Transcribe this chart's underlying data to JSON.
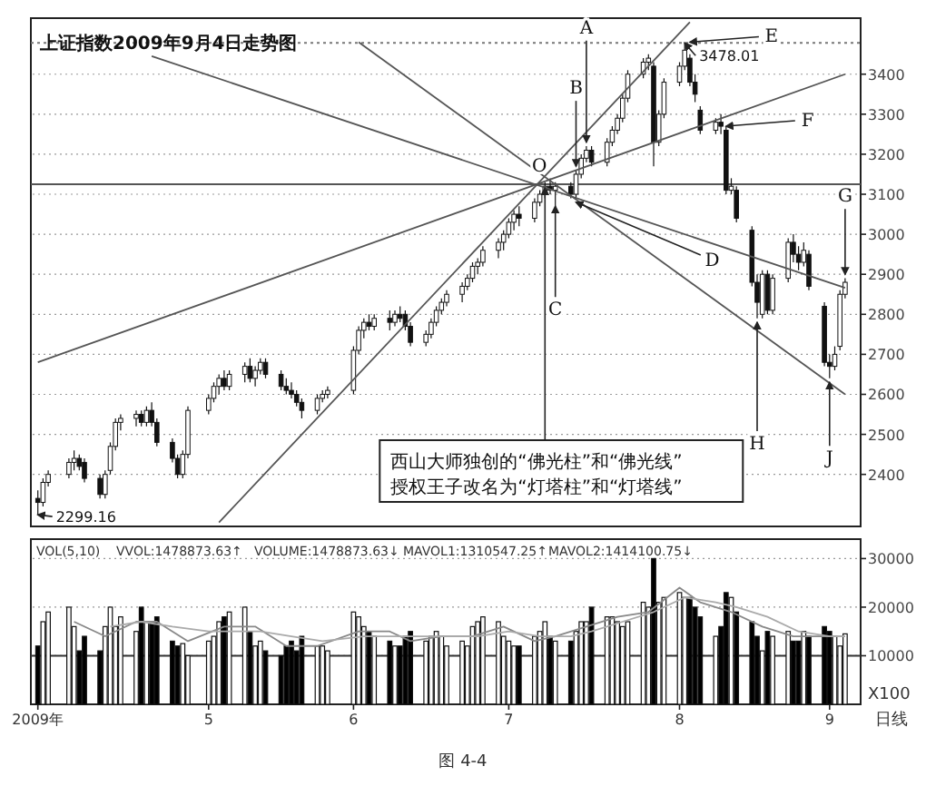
{
  "chart_data": [
    {
      "type": "candlestick",
      "title": "上证指数2009年9月4日走势图",
      "x": [
        "2009-04-01",
        "2009-04-02",
        "2009-04-03",
        "2009-04-07",
        "2009-04-08",
        "2009-04-09",
        "2009-04-10",
        "2009-04-13",
        "2009-04-14",
        "2009-04-15",
        "2009-04-16",
        "2009-04-17",
        "2009-04-20",
        "2009-04-21",
        "2009-04-22",
        "2009-04-23",
        "2009-04-24",
        "2009-04-27",
        "2009-04-28",
        "2009-04-29",
        "2009-04-30",
        "2009-05-04",
        "2009-05-05",
        "2009-05-06",
        "2009-05-07",
        "2009-05-08",
        "2009-05-11",
        "2009-05-12",
        "2009-05-13",
        "2009-05-14",
        "2009-05-15",
        "2009-05-18",
        "2009-05-19",
        "2009-05-20",
        "2009-05-21",
        "2009-05-22",
        "2009-05-25",
        "2009-05-26",
        "2009-05-27",
        "2009-06-01",
        "2009-06-02",
        "2009-06-03",
        "2009-06-04",
        "2009-06-05",
        "2009-06-08",
        "2009-06-09",
        "2009-06-10",
        "2009-06-11",
        "2009-06-12",
        "2009-06-15",
        "2009-06-16",
        "2009-06-17",
        "2009-06-18",
        "2009-06-19",
        "2009-06-22",
        "2009-06-23",
        "2009-06-24",
        "2009-06-25",
        "2009-06-26",
        "2009-06-29",
        "2009-06-30",
        "2009-07-01",
        "2009-07-02",
        "2009-07-03",
        "2009-07-06",
        "2009-07-07",
        "2009-07-08",
        "2009-07-09",
        "2009-07-10",
        "2009-07-13",
        "2009-07-14",
        "2009-07-15",
        "2009-07-16",
        "2009-07-17",
        "2009-07-20",
        "2009-07-21",
        "2009-07-22",
        "2009-07-23",
        "2009-07-24",
        "2009-07-27",
        "2009-07-28",
        "2009-07-29",
        "2009-07-30",
        "2009-07-31",
        "2009-08-03",
        "2009-08-04",
        "2009-08-05",
        "2009-08-06",
        "2009-08-07",
        "2009-08-10",
        "2009-08-11",
        "2009-08-12",
        "2009-08-13",
        "2009-08-14",
        "2009-08-17",
        "2009-08-18",
        "2009-08-19",
        "2009-08-20",
        "2009-08-21",
        "2009-08-24",
        "2009-08-25",
        "2009-08-26",
        "2009-08-27",
        "2009-08-28",
        "2009-08-31",
        "2009-09-01",
        "2009-09-02",
        "2009-09-03",
        "2009-09-04"
      ],
      "ohlc": [
        [
          2340,
          2360,
          2299.16,
          2330
        ],
        [
          2330,
          2390,
          2320,
          2380
        ],
        [
          2380,
          2410,
          2370,
          2400
        ],
        [
          2400,
          2440,
          2390,
          2430
        ],
        [
          2430,
          2460,
          2410,
          2440
        ],
        [
          2440,
          2450,
          2410,
          2420
        ],
        [
          2430,
          2440,
          2380,
          2390
        ],
        [
          2390,
          2400,
          2340,
          2350
        ],
        [
          2350,
          2410,
          2340,
          2400
        ],
        [
          2410,
          2480,
          2400,
          2470
        ],
        [
          2470,
          2540,
          2460,
          2530
        ],
        [
          2530,
          2550,
          2510,
          2540
        ],
        [
          2540,
          2560,
          2520,
          2550
        ],
        [
          2550,
          2560,
          2520,
          2530
        ],
        [
          2530,
          2570,
          2520,
          2560
        ],
        [
          2560,
          2580,
          2520,
          2530
        ],
        [
          2530,
          2540,
          2470,
          2480
        ],
        [
          2480,
          2490,
          2430,
          2440
        ],
        [
          2440,
          2450,
          2390,
          2400
        ],
        [
          2400,
          2460,
          2390,
          2450
        ],
        [
          2450,
          2570,
          2440,
          2560
        ],
        [
          2560,
          2600,
          2550,
          2590
        ],
        [
          2590,
          2630,
          2580,
          2620
        ],
        [
          2620,
          2650,
          2600,
          2640
        ],
        [
          2640,
          2660,
          2610,
          2620
        ],
        [
          2620,
          2660,
          2610,
          2650
        ],
        [
          2650,
          2680,
          2630,
          2670
        ],
        [
          2670,
          2690,
          2630,
          2640
        ],
        [
          2640,
          2670,
          2620,
          2660
        ],
        [
          2660,
          2690,
          2650,
          2680
        ],
        [
          2680,
          2690,
          2640,
          2650
        ],
        [
          2650,
          2660,
          2610,
          2620
        ],
        [
          2620,
          2640,
          2600,
          2610
        ],
        [
          2610,
          2630,
          2590,
          2600
        ],
        [
          2600,
          2610,
          2570,
          2580
        ],
        [
          2580,
          2590,
          2540,
          2560
        ],
        [
          2560,
          2600,
          2550,
          2590
        ],
        [
          2590,
          2610,
          2580,
          2600
        ],
        [
          2600,
          2620,
          2590,
          2610
        ],
        [
          2610,
          2720,
          2600,
          2710
        ],
        [
          2710,
          2770,
          2700,
          2760
        ],
        [
          2760,
          2790,
          2740,
          2780
        ],
        [
          2780,
          2800,
          2760,
          2770
        ],
        [
          2770,
          2800,
          2760,
          2790
        ],
        [
          2790,
          2810,
          2760,
          2780
        ],
        [
          2780,
          2810,
          2770,
          2800
        ],
        [
          2800,
          2820,
          2780,
          2790
        ],
        [
          2800,
          2810,
          2760,
          2770
        ],
        [
          2770,
          2780,
          2720,
          2730
        ],
        [
          2730,
          2760,
          2720,
          2750
        ],
        [
          2750,
          2790,
          2740,
          2780
        ],
        [
          2780,
          2820,
          2770,
          2810
        ],
        [
          2810,
          2840,
          2800,
          2830
        ],
        [
          2830,
          2860,
          2820,
          2850
        ],
        [
          2850,
          2880,
          2830,
          2870
        ],
        [
          2870,
          2900,
          2860,
          2890
        ],
        [
          2890,
          2930,
          2880,
          2920
        ],
        [
          2920,
          2940,
          2900,
          2930
        ],
        [
          2930,
          2970,
          2920,
          2960
        ],
        [
          2960,
          2990,
          2940,
          2980
        ],
        [
          2980,
          3010,
          2960,
          3000
        ],
        [
          3000,
          3040,
          2990,
          3030
        ],
        [
          3030,
          3060,
          3010,
          3050
        ],
        [
          3050,
          3070,
          3020,
          3040
        ],
        [
          3040,
          3090,
          3030,
          3080
        ],
        [
          3080,
          3110,
          3070,
          3100
        ],
        [
          3100,
          3130,
          3090,
          3120
        ],
        [
          3120,
          3140,
          3100,
          3110
        ],
        [
          3110,
          3130,
          3070,
          3120
        ],
        [
          3120,
          3130,
          3090,
          3100
        ],
        [
          3100,
          3160,
          3090,
          3150
        ],
        [
          3150,
          3200,
          3140,
          3190
        ],
        [
          3190,
          3220,
          3180,
          3210
        ],
        [
          3210,
          3220,
          3170,
          3180
        ],
        [
          3180,
          3240,
          3170,
          3230
        ],
        [
          3230,
          3270,
          3220,
          3260
        ],
        [
          3260,
          3300,
          3250,
          3290
        ],
        [
          3290,
          3350,
          3280,
          3340
        ],
        [
          3340,
          3410,
          3330,
          3400
        ],
        [
          3400,
          3440,
          3390,
          3430
        ],
        [
          3430,
          3450,
          3410,
          3440
        ],
        [
          3420,
          3430,
          3170,
          3230
        ],
        [
          3230,
          3310,
          3220,
          3300
        ],
        [
          3300,
          3390,
          3290,
          3380
        ],
        [
          3380,
          3430,
          3370,
          3420
        ],
        [
          3420,
          3478.01,
          3410,
          3460
        ],
        [
          3440,
          3450,
          3370,
          3380
        ],
        [
          3380,
          3400,
          3330,
          3350
        ],
        [
          3310,
          3320,
          3250,
          3260
        ],
        [
          3260,
          3290,
          3250,
          3280
        ],
        [
          3280,
          3300,
          3250,
          3270
        ],
        [
          3260,
          3270,
          3100,
          3110
        ],
        [
          3110,
          3140,
          3100,
          3120
        ],
        [
          3110,
          3120,
          3030,
          3040
        ],
        [
          3010,
          3020,
          2870,
          2880
        ],
        [
          2880,
          2900,
          2790,
          2830
        ],
        [
          2800,
          2910,
          2790,
          2900
        ],
        [
          2900,
          2910,
          2800,
          2810
        ],
        [
          2810,
          2900,
          2800,
          2890
        ],
        [
          2890,
          2990,
          2880,
          2980
        ],
        [
          2980,
          3000,
          2930,
          2950
        ],
        [
          2950,
          2970,
          2910,
          2930
        ],
        [
          2930,
          2980,
          2920,
          2960
        ],
        [
          2950,
          2960,
          2860,
          2870
        ],
        [
          2820,
          2830,
          2670,
          2680
        ],
        [
          2680,
          2700,
          2640,
          2670
        ],
        [
          2670,
          2720,
          2660,
          2700
        ],
        [
          2720,
          2860,
          2710,
          2850
        ],
        [
          2850,
          2890,
          2840,
          2880
        ]
      ],
      "xlim": [
        "2009-03-31",
        "2009-09-07"
      ],
      "ylim": [
        2270,
        3540
      ],
      "yticks": [
        2400,
        2500,
        2600,
        2700,
        2800,
        2900,
        3000,
        3100,
        3200,
        3300,
        3400
      ],
      "tick_labels": "y",
      "grid": "y",
      "ref_lines": [
        {
          "axis": "y",
          "value": 3125,
          "color": "#555555"
        },
        {
          "axis": "y",
          "value": 3478.01,
          "color": "#777777",
          "line_style": "dotted"
        }
      ],
      "series": [
        {
          "type": "line",
          "color": "#555555",
          "x": [
            "2009-04-01",
            "2009-09-04"
          ],
          "values": [
            2680,
            3400
          ]
        },
        {
          "type": "line",
          "color": "#555555",
          "x": [
            "2009-05-06",
            "2009-08-05"
          ],
          "values": [
            2280,
            3530
          ]
        },
        {
          "type": "line",
          "color": "#555555",
          "x": [
            "2009-06-02",
            "2009-09-04"
          ],
          "values": [
            3480,
            2600
          ]
        },
        {
          "type": "line",
          "color": "#555555",
          "x": [
            "2009-04-23",
            "2009-09-04"
          ],
          "values": [
            3445,
            2866
          ]
        }
      ],
      "annotations": [
        {
          "text": "2299.16",
          "x": "2009-04-01",
          "y": 2299.16
        },
        {
          "text": "3478.01",
          "x": "2009-08-04",
          "y": 3478.01
        },
        {
          "text": "O",
          "x": "2009-07-08",
          "y": 3125
        },
        {
          "text": "A",
          "x": "2009-07-16",
          "y": 3230
        },
        {
          "text": "B",
          "x": "2009-07-14",
          "y": 3170
        },
        {
          "text": "C",
          "x": "2009-07-10",
          "y": 3070
        },
        {
          "text": "D",
          "x": "2009-07-14",
          "y": 3080
        },
        {
          "text": "E",
          "x": "2009-08-05",
          "y": 3480
        },
        {
          "text": "F",
          "x": "2009-08-12",
          "y": 3270
        },
        {
          "text": "G",
          "x": "2009-09-04",
          "y": 2900
        },
        {
          "text": "H",
          "x": "2009-08-18",
          "y": 2780
        },
        {
          "text": "J",
          "x": "2009-09-01",
          "y": 2630
        },
        {
          "text": "西山大师独创的“佛光柱”和“佛光线”\n授权王子改名为“灯塔柱”和“灯塔线”",
          "x": "2009-07-08",
          "y": 3125
        }
      ]
    },
    {
      "type": "bar",
      "x": [
        "2009-04-01",
        "2009-04-02",
        "2009-04-03",
        "2009-04-07",
        "2009-04-08",
        "2009-04-09",
        "2009-04-10",
        "2009-04-13",
        "2009-04-14",
        "2009-04-15",
        "2009-04-16",
        "2009-04-17",
        "2009-04-20",
        "2009-04-21",
        "2009-04-22",
        "2009-04-23",
        "2009-04-24",
        "2009-04-27",
        "2009-04-28",
        "2009-04-29",
        "2009-04-30",
        "2009-05-04",
        "2009-05-05",
        "2009-05-06",
        "2009-05-07",
        "2009-05-08",
        "2009-05-11",
        "2009-05-12",
        "2009-05-13",
        "2009-05-14",
        "2009-05-15",
        "2009-05-18",
        "2009-05-19",
        "2009-05-20",
        "2009-05-21",
        "2009-05-22",
        "2009-05-25",
        "2009-05-26",
        "2009-05-27",
        "2009-06-01",
        "2009-06-02",
        "2009-06-03",
        "2009-06-04",
        "2009-06-05",
        "2009-06-08",
        "2009-06-09",
        "2009-06-10",
        "2009-06-11",
        "2009-06-12",
        "2009-06-15",
        "2009-06-16",
        "2009-06-17",
        "2009-06-18",
        "2009-06-19",
        "2009-06-22",
        "2009-06-23",
        "2009-06-24",
        "2009-06-25",
        "2009-06-26",
        "2009-06-29",
        "2009-06-30",
        "2009-07-01",
        "2009-07-02",
        "2009-07-03",
        "2009-07-06",
        "2009-07-07",
        "2009-07-08",
        "2009-07-09",
        "2009-07-10",
        "2009-07-13",
        "2009-07-14",
        "2009-07-15",
        "2009-07-16",
        "2009-07-17",
        "2009-07-20",
        "2009-07-21",
        "2009-07-22",
        "2009-07-23",
        "2009-07-24",
        "2009-07-27",
        "2009-07-28",
        "2009-07-29",
        "2009-07-30",
        "2009-07-31",
        "2009-08-03",
        "2009-08-04",
        "2009-08-05",
        "2009-08-06",
        "2009-08-07",
        "2009-08-10",
        "2009-08-11",
        "2009-08-12",
        "2009-08-13",
        "2009-08-14",
        "2009-08-17",
        "2009-08-18",
        "2009-08-19",
        "2009-08-20",
        "2009-08-21",
        "2009-08-24",
        "2009-08-25",
        "2009-08-26",
        "2009-08-27",
        "2009-08-28",
        "2009-08-31",
        "2009-09-01",
        "2009-09-02",
        "2009-09-03",
        "2009-09-04"
      ],
      "values": [
        12000,
        17000,
        19000,
        20000,
        16000,
        11000,
        14000,
        11000,
        16000,
        20000,
        16000,
        18000,
        15000,
        20000,
        17000,
        17000,
        18000,
        13000,
        12000,
        12500,
        10000,
        13000,
        14000,
        17000,
        18000,
        19000,
        20000,
        15000,
        12000,
        13000,
        11000,
        10000,
        12000,
        13000,
        11000,
        14000,
        12000,
        12000,
        11000,
        19000,
        18000,
        16000,
        15000,
        14000,
        13000,
        12000,
        12000,
        14000,
        15000,
        13000,
        14000,
        15000,
        14000,
        12000,
        13000,
        12000,
        16000,
        17000,
        18000,
        17000,
        14000,
        13000,
        12000,
        12000,
        14000,
        15000,
        17000,
        14000,
        13000,
        13000,
        15000,
        17000,
        17000,
        20000,
        18000,
        18000,
        17000,
        16000,
        17000,
        21000,
        20000,
        30000,
        21000,
        22000,
        23000,
        22000,
        22000,
        20000,
        18000,
        14000,
        16000,
        23000,
        22000,
        19000,
        17000,
        14000,
        11000,
        15000,
        14000,
        15000,
        13000,
        13000,
        15000,
        14000,
        16000,
        15000,
        14000,
        12000,
        14500
      ],
      "colors": [
        "#000000",
        "#ffffff",
        "#ffffff",
        "#ffffff",
        "#ffffff",
        "#000000",
        "#000000",
        "#000000",
        "#ffffff",
        "#ffffff",
        "#ffffff",
        "#ffffff",
        "#ffffff",
        "#000000",
        "#ffffff",
        "#000000",
        "#000000",
        "#000000",
        "#000000",
        "#ffffff",
        "#ffffff",
        "#ffffff",
        "#ffffff",
        "#ffffff",
        "#000000",
        "#ffffff",
        "#ffffff",
        "#000000",
        "#ffffff",
        "#ffffff",
        "#000000",
        "#000000",
        "#000000",
        "#000000",
        "#000000",
        "#000000",
        "#ffffff",
        "#ffffff",
        "#ffffff",
        "#ffffff",
        "#ffffff",
        "#ffffff",
        "#000000",
        "#ffffff",
        "#000000",
        "#ffffff",
        "#000000",
        "#000000",
        "#000000",
        "#ffffff",
        "#ffffff",
        "#ffffff",
        "#ffffff",
        "#ffffff",
        "#ffffff",
        "#ffffff",
        "#ffffff",
        "#ffffff",
        "#ffffff",
        "#ffffff",
        "#ffffff",
        "#ffffff",
        "#ffffff",
        "#000000",
        "#ffffff",
        "#ffffff",
        "#ffffff",
        "#000000",
        "#ffffff",
        "#000000",
        "#ffffff",
        "#ffffff",
        "#ffffff",
        "#000000",
        "#ffffff",
        "#ffffff",
        "#ffffff",
        "#ffffff",
        "#ffffff",
        "#ffffff",
        "#ffffff",
        "#000000",
        "#ffffff",
        "#ffffff",
        "#ffffff",
        "#ffffff",
        "#000000",
        "#000000",
        "#000000",
        "#ffffff",
        "#000000",
        "#000000",
        "#ffffff",
        "#000000",
        "#000000",
        "#000000",
        "#ffffff",
        "#000000",
        "#ffffff",
        "#ffffff",
        "#000000",
        "#000000",
        "#ffffff",
        "#000000",
        "#000000",
        "#000000",
        "#ffffff",
        "#ffffff",
        "#ffffff"
      ],
      "xlim": [
        "2009-03-31",
        "2009-09-07"
      ],
      "ylim": [
        0,
        34000
      ],
      "yticks": [
        10000,
        20000,
        30000
      ],
      "grid": "y",
      "xticks": [
        {
          "value": "2009-04-01",
          "label": "2009年"
        },
        {
          "value": "2009-05-04",
          "label": "5"
        },
        {
          "value": "2009-06-01",
          "label": "6"
        },
        {
          "value": "2009-07-01",
          "label": "7"
        },
        {
          "value": "2009-08-03",
          "label": "8"
        },
        {
          "value": "2009-09-01",
          "label": "9"
        }
      ],
      "ref_lines": [
        {
          "axis": "y",
          "value": 10000,
          "color": "#333333"
        }
      ],
      "series": [
        {
          "type": "line",
          "color": "#888888",
          "x": [
            "2009-04-08",
            "2009-04-14",
            "2009-04-20",
            "2009-04-24",
            "2009-04-30",
            "2009-05-07",
            "2009-05-13",
            "2009-05-19",
            "2009-05-25",
            "2009-06-02",
            "2009-06-08",
            "2009-06-12",
            "2009-06-18",
            "2009-06-24",
            "2009-06-30",
            "2009-07-06",
            "2009-07-10",
            "2009-07-16",
            "2009-07-22",
            "2009-07-28",
            "2009-08-03",
            "2009-08-07",
            "2009-08-13",
            "2009-08-19",
            "2009-08-25",
            "2009-08-31",
            "2009-09-04"
          ],
          "values": [
            17000,
            14000,
            17000,
            17000,
            13000,
            16000,
            16000,
            12000,
            12000,
            15000,
            15000,
            13000,
            14000,
            14000,
            16000,
            13000,
            14000,
            16000,
            18000,
            19000,
            24000,
            21000,
            19000,
            16000,
            14000,
            14000,
            14000
          ]
        },
        {
          "type": "line",
          "color": "#aaaaaa",
          "x": [
            "2009-04-15",
            "2009-04-21",
            "2009-04-27",
            "2009-05-04",
            "2009-05-08",
            "2009-05-14",
            "2009-05-20",
            "2009-05-26",
            "2009-06-03",
            "2009-06-09",
            "2009-06-15",
            "2009-06-19",
            "2009-06-25",
            "2009-07-01",
            "2009-07-07",
            "2009-07-13",
            "2009-07-17",
            "2009-07-23",
            "2009-07-29",
            "2009-08-04",
            "2009-08-10",
            "2009-08-14",
            "2009-08-20",
            "2009-08-26",
            "2009-09-01",
            "2009-09-04"
          ],
          "values": [
            16000,
            17000,
            16000,
            15000,
            15000,
            15000,
            14000,
            13000,
            14000,
            14000,
            14000,
            14000,
            14000,
            15000,
            14000,
            14000,
            15000,
            17000,
            19000,
            22000,
            21000,
            20000,
            18000,
            15000,
            14000,
            14000
          ]
        }
      ],
      "annotations": [
        "VOL(5,10)",
        "VVOL:1478873.63↑",
        "VOLUME:1478873.63↓",
        "MAVOL1:1310547.25↑",
        "MAVOL2:1414100.75↓",
        "X100",
        "日线",
        "图 4-4"
      ]
    }
  ]
}
